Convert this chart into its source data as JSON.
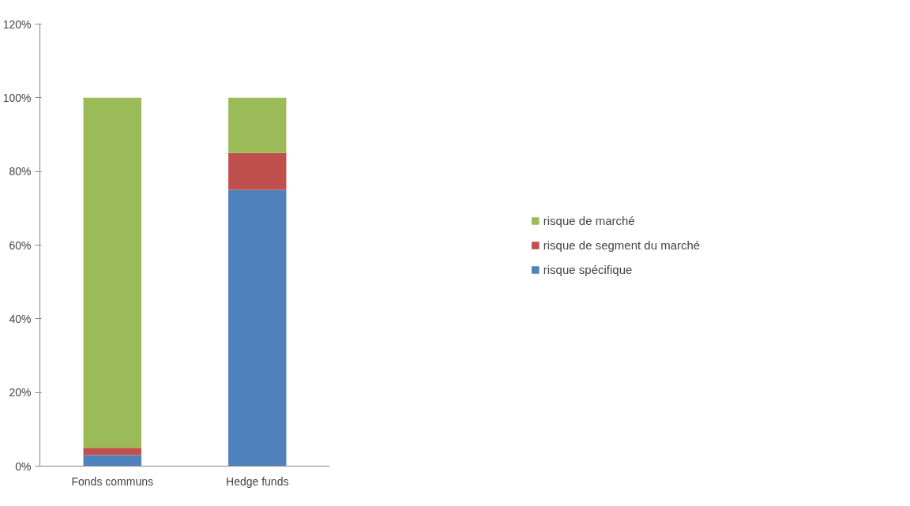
{
  "chart_data": {
    "type": "bar",
    "stacked": true,
    "categories": [
      "Fonds communs",
      "Hedge funds"
    ],
    "series": [
      {
        "name": "risque spécifique",
        "color": "#4f81bd",
        "values": [
          3,
          75
        ]
      },
      {
        "name": "risque de segment du marché",
        "color": "#c0504d",
        "values": [
          2,
          10
        ]
      },
      {
        "name": "risque de marché",
        "color": "#9bbb59",
        "values": [
          95,
          15
        ]
      }
    ],
    "ylim": [
      0,
      120
    ],
    "yticks": [
      {
        "value": 0,
        "label": "0%"
      },
      {
        "value": 20,
        "label": "20%"
      },
      {
        "value": 40,
        "label": "40%"
      },
      {
        "value": 60,
        "label": "60%"
      },
      {
        "value": 80,
        "label": "80%"
      },
      {
        "value": 100,
        "label": "100%"
      },
      {
        "value": 120,
        "label": "120%"
      }
    ],
    "grid": false,
    "legend": "right"
  }
}
